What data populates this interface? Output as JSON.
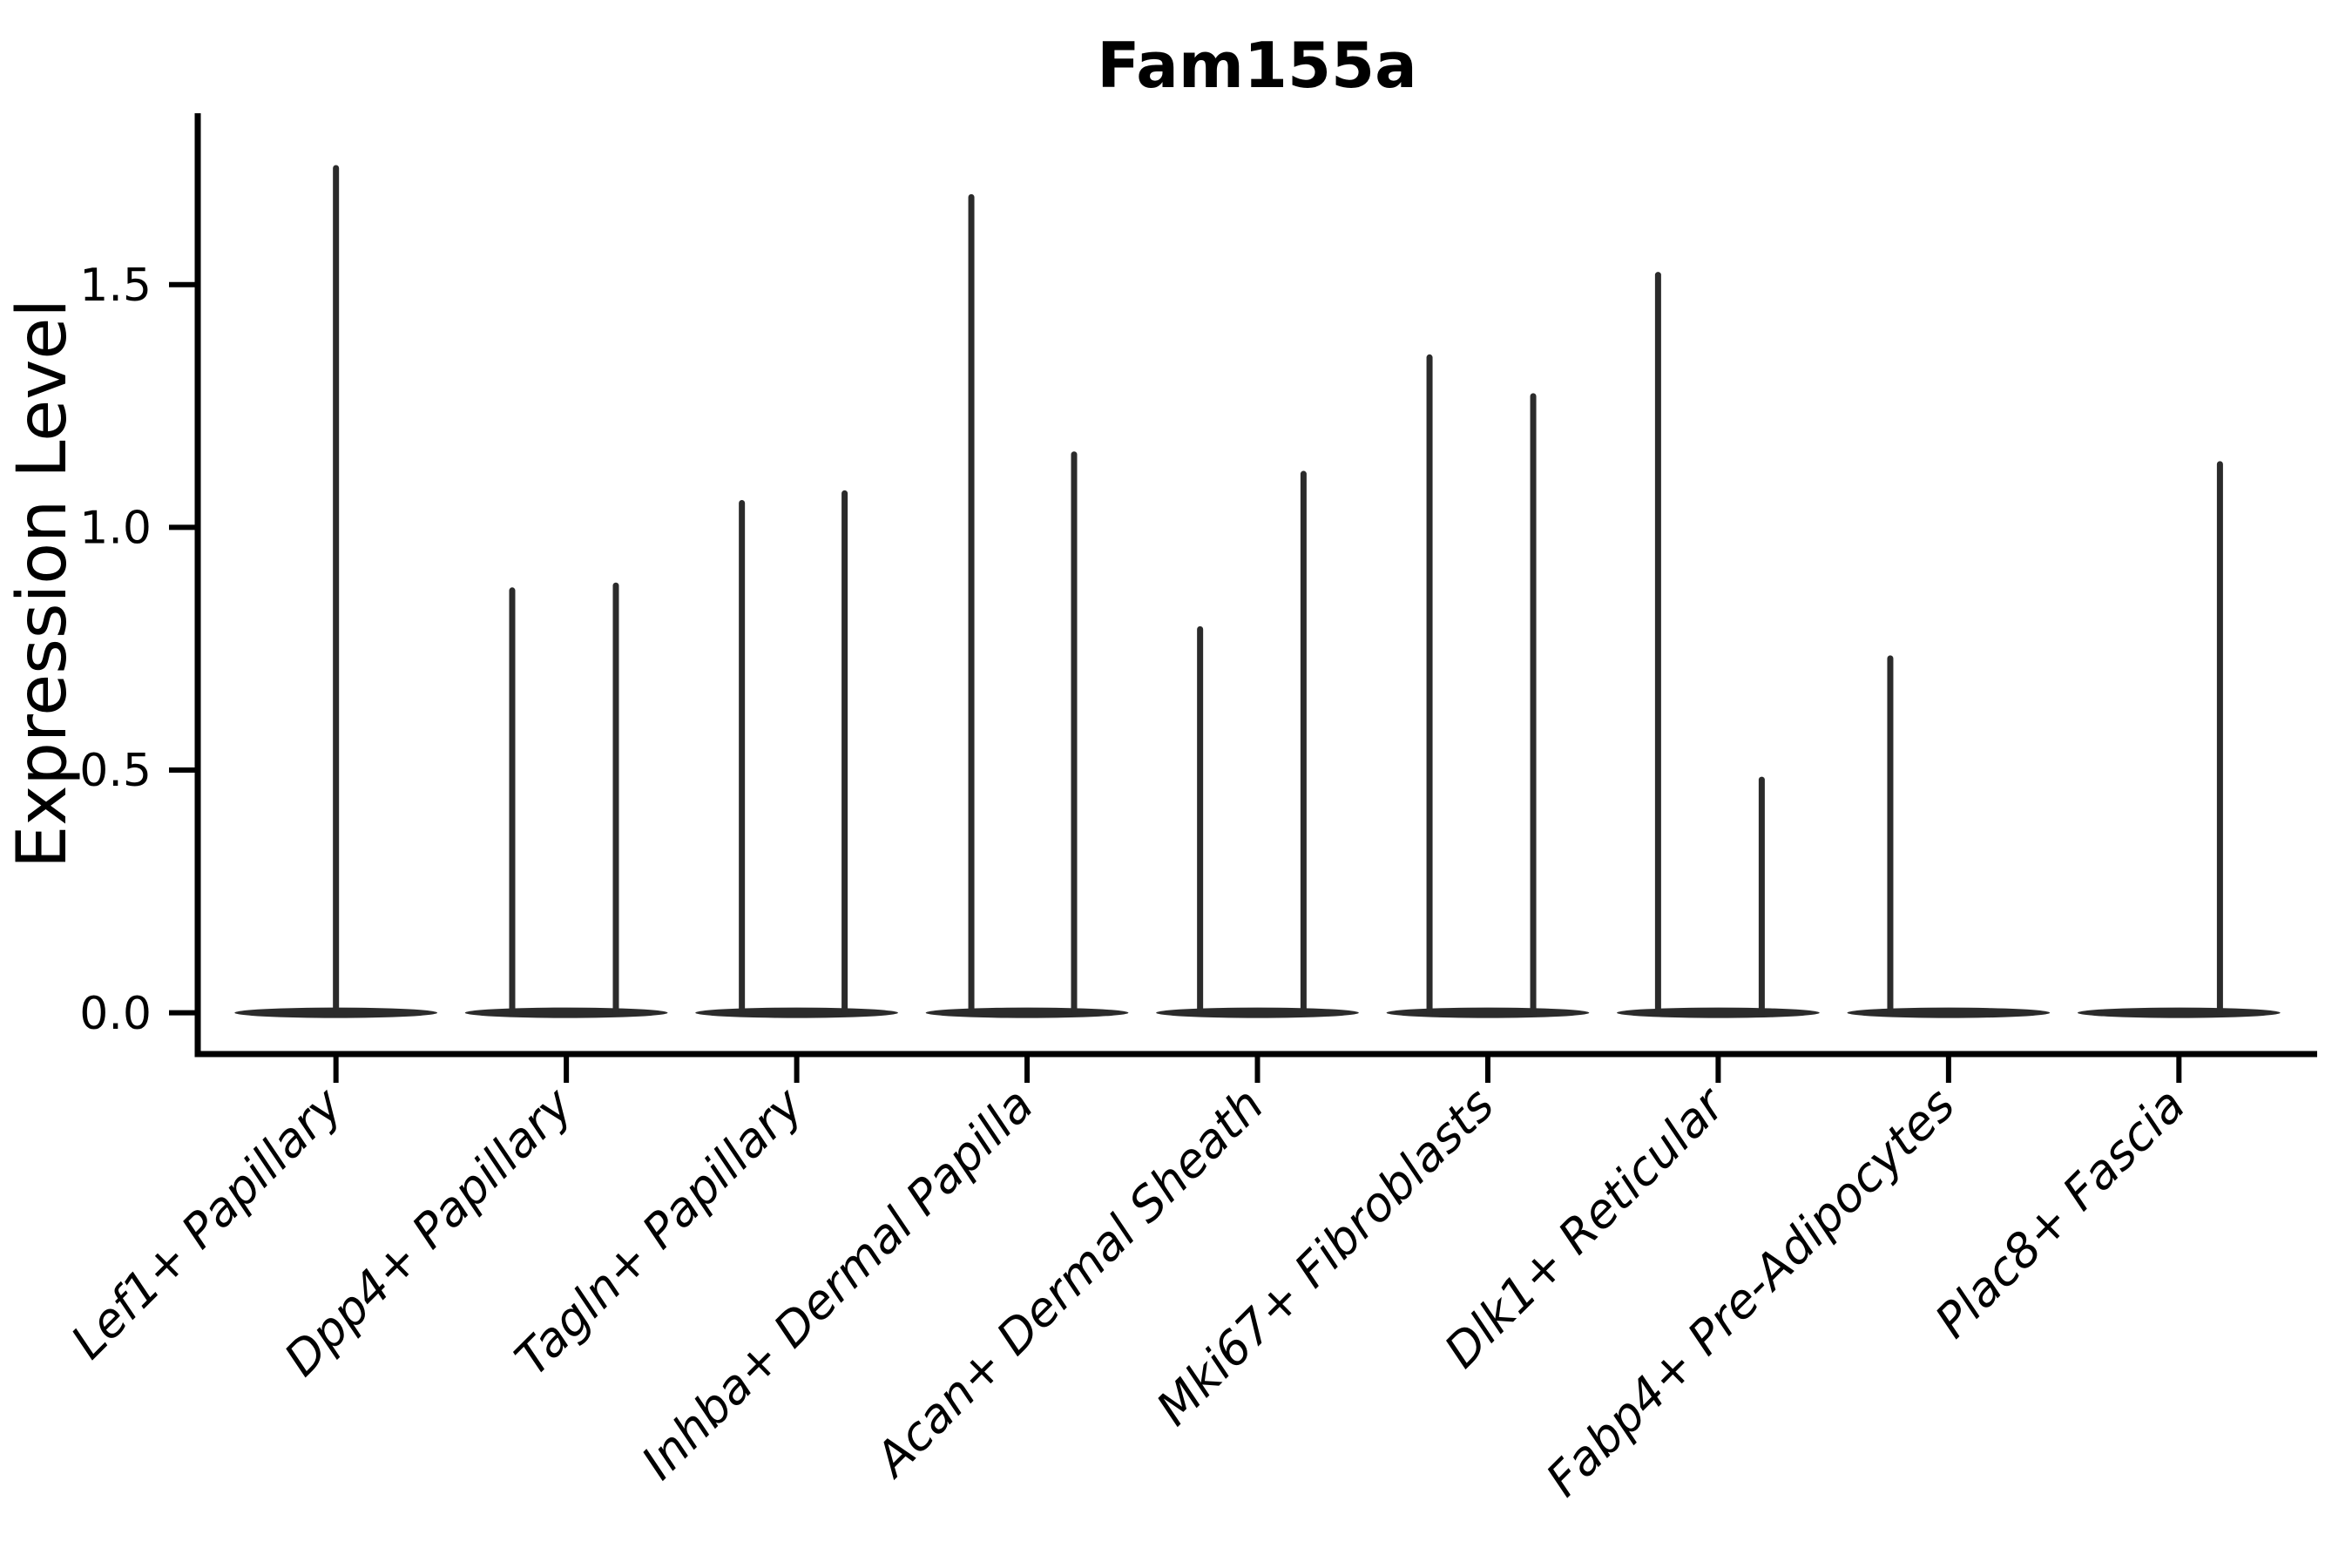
{
  "chart_data": {
    "type": "violin",
    "title": "Fam155a",
    "ylabel": "Expression Level",
    "xlabel": "",
    "grid": false,
    "legend": "none",
    "ylim": [
      -0.085,
      1.853
    ],
    "xlim": [
      -0.6,
      8.6
    ],
    "yticks": [
      {
        "value": 0.0,
        "label": "0.0"
      },
      {
        "value": 0.5,
        "label": "0.5"
      },
      {
        "value": 1.0,
        "label": "1.0"
      },
      {
        "value": 1.5,
        "label": "1.5"
      }
    ],
    "categories": [
      "Lef1+ Papillary",
      "Dpp4+ Papillary",
      "Tagln+ Papillary",
      "Inhba+ Dermal Papilla",
      "Acan+ Dermal Sheath",
      "Mki67+ Fibroblasts",
      "Dlk1+ Reticular",
      "Fabp4+ Pre-Adipocytes",
      "Plac8+ Fascia"
    ],
    "violins": [
      {
        "category": "Lef1+ Papillary",
        "base_half_width": 0.44,
        "spikes": [
          {
            "offset": 0.0,
            "max": 1.74
          }
        ]
      },
      {
        "category": "Dpp4+ Papillary",
        "base_half_width": 0.44,
        "spikes": [
          {
            "offset": -0.235,
            "max": 0.87
          },
          {
            "offset": 0.215,
            "max": 0.88
          }
        ]
      },
      {
        "category": "Tagln+ Papillary",
        "base_half_width": 0.44,
        "spikes": [
          {
            "offset": -0.238,
            "max": 1.05
          },
          {
            "offset": 0.208,
            "max": 1.07
          }
        ]
      },
      {
        "category": "Inhba+ Dermal Papilla",
        "base_half_width": 0.44,
        "spikes": [
          {
            "offset": -0.242,
            "max": 1.68
          },
          {
            "offset": 0.204,
            "max": 1.15
          }
        ]
      },
      {
        "category": "Acan+ Dermal Sheath",
        "base_half_width": 0.44,
        "spikes": [
          {
            "offset": -0.249,
            "max": 0.79
          },
          {
            "offset": 0.2,
            "max": 1.11
          }
        ]
      },
      {
        "category": "Mki67+ Fibroblasts",
        "base_half_width": 0.44,
        "spikes": [
          {
            "offset": -0.253,
            "max": 1.35
          },
          {
            "offset": 0.197,
            "max": 1.27
          }
        ]
      },
      {
        "category": "Dlk1+ Reticular",
        "base_half_width": 0.44,
        "spikes": [
          {
            "offset": -0.261,
            "max": 1.52
          },
          {
            "offset": 0.189,
            "max": 0.48
          }
        ]
      },
      {
        "category": "Fabp4+ Pre-Adipocytes",
        "base_half_width": 0.44,
        "spikes": [
          {
            "offset": -0.253,
            "max": 0.73
          }
        ]
      },
      {
        "category": "Plac8+ Fascia",
        "base_half_width": 0.44,
        "spikes": [
          {
            "offset": 0.178,
            "max": 1.13
          }
        ]
      }
    ],
    "colors": {
      "violin_stroke": "#2b2b2b",
      "spine": "#000000",
      "text": "#000000",
      "background": "#ffffff"
    }
  }
}
